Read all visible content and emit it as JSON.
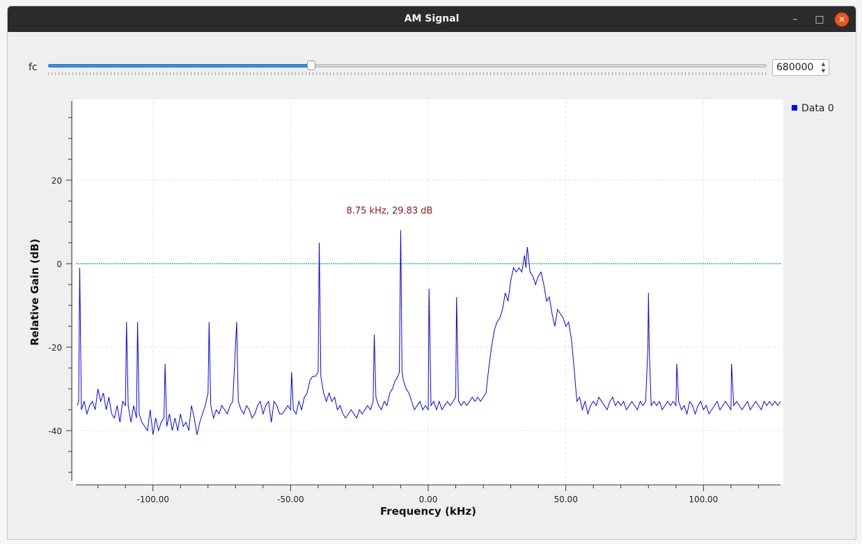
{
  "window": {
    "title": "AM Signal",
    "minimize_label": "–",
    "maximize_label": "□",
    "close_label": "✕"
  },
  "controls": {
    "fc_label": "fc",
    "fc_value": "680000",
    "slider_fraction": 0.366
  },
  "chart_data": {
    "type": "line",
    "xlabel": "Frequency (kHz)",
    "ylabel": "Relative Gain (dB)",
    "xlim": [
      -128,
      128
    ],
    "ylim": [
      -52,
      39
    ],
    "x_ticks": [
      {
        "value": -100,
        "label": "-100.00"
      },
      {
        "value": -50,
        "label": "-50.00"
      },
      {
        "value": 0,
        "label": "0.00"
      },
      {
        "value": 50,
        "label": "50.00"
      },
      {
        "value": 100,
        "label": "100.00"
      }
    ],
    "y_ticks": [
      {
        "value": 20,
        "label": "20"
      },
      {
        "value": 0,
        "label": "0"
      },
      {
        "value": -20,
        "label": "-20"
      },
      {
        "value": -40,
        "label": "-40"
      }
    ],
    "grid": true,
    "reference_line": {
      "y": 0,
      "color": "#008080"
    },
    "legend": {
      "position": "right",
      "entries": [
        "Data 0"
      ]
    },
    "annotation": {
      "text": "8.75 kHz, 29.83 dB",
      "color": "#8b1a1a"
    },
    "line_color": "#0000ff",
    "series": [
      {
        "name": "Data 0",
        "points": [
          [
            -127.5,
            -34
          ],
          [
            -127,
            -33
          ],
          [
            -126.6,
            -1
          ],
          [
            -126,
            -35
          ],
          [
            -125,
            -33
          ],
          [
            -124,
            -36
          ],
          [
            -123,
            -34
          ],
          [
            -122,
            -33
          ],
          [
            -121,
            -35
          ],
          [
            -120,
            -30
          ],
          [
            -119,
            -33
          ],
          [
            -118,
            -31
          ],
          [
            -117,
            -35
          ],
          [
            -116,
            -32
          ],
          [
            -115,
            -36
          ],
          [
            -114,
            -37
          ],
          [
            -113,
            -34
          ],
          [
            -112,
            -38
          ],
          [
            -111,
            -33
          ],
          [
            -110,
            -34
          ],
          [
            -109.6,
            -14
          ],
          [
            -109,
            -34
          ],
          [
            -108,
            -38
          ],
          [
            -107,
            -34
          ],
          [
            -106,
            -37
          ],
          [
            -105.6,
            -14
          ],
          [
            -105,
            -36
          ],
          [
            -104,
            -38
          ],
          [
            -103,
            -39
          ],
          [
            -102,
            -40
          ],
          [
            -101,
            -35
          ],
          [
            -100,
            -41
          ],
          [
            -99,
            -37
          ],
          [
            -98,
            -40
          ],
          [
            -97,
            -38
          ],
          [
            -96,
            -37
          ],
          [
            -95.6,
            -24
          ],
          [
            -95,
            -39
          ],
          [
            -94,
            -36
          ],
          [
            -93,
            -40
          ],
          [
            -92,
            -37
          ],
          [
            -91,
            -40
          ],
          [
            -90,
            -36
          ],
          [
            -89,
            -39
          ],
          [
            -88,
            -38
          ],
          [
            -87,
            -40
          ],
          [
            -86,
            -34
          ],
          [
            -85,
            -37
          ],
          [
            -84,
            -41
          ],
          [
            -83,
            -38
          ],
          [
            -82,
            -36
          ],
          [
            -81,
            -34
          ],
          [
            -80,
            -31
          ],
          [
            -79.6,
            -14
          ],
          [
            -79,
            -34
          ],
          [
            -78,
            -37
          ],
          [
            -77,
            -35
          ],
          [
            -76,
            -36
          ],
          [
            -75,
            -34
          ],
          [
            -74,
            -35
          ],
          [
            -73,
            -36
          ],
          [
            -72,
            -34
          ],
          [
            -71,
            -33
          ],
          [
            -69.6,
            -14
          ],
          [
            -69,
            -33
          ],
          [
            -68,
            -35
          ],
          [
            -67,
            -36
          ],
          [
            -66,
            -34
          ],
          [
            -65,
            -35
          ],
          [
            -64,
            -37
          ],
          [
            -63,
            -36
          ],
          [
            -62,
            -34
          ],
          [
            -61,
            -33
          ],
          [
            -60,
            -36
          ],
          [
            -59,
            -34
          ],
          [
            -58,
            -33
          ],
          [
            -57,
            -38
          ],
          [
            -56,
            -33
          ],
          [
            -55,
            -34
          ],
          [
            -54,
            -36
          ],
          [
            -53,
            -36
          ],
          [
            -52,
            -35
          ],
          [
            -51,
            -34
          ],
          [
            -50,
            -35
          ],
          [
            -49.6,
            -26
          ],
          [
            -49,
            -35
          ],
          [
            -48,
            -36
          ],
          [
            -47,
            -33
          ],
          [
            -46,
            -35
          ],
          [
            -45,
            -32
          ],
          [
            -44,
            -31
          ],
          [
            -43,
            -28
          ],
          [
            -42,
            -27
          ],
          [
            -41,
            -27
          ],
          [
            -40,
            -26
          ],
          [
            -39.6,
            5
          ],
          [
            -39,
            -27
          ],
          [
            -38,
            -31
          ],
          [
            -37,
            -33
          ],
          [
            -36,
            -31
          ],
          [
            -35,
            -33
          ],
          [
            -34,
            -32
          ],
          [
            -33,
            -35
          ],
          [
            -32,
            -34
          ],
          [
            -31,
            -36
          ],
          [
            -30,
            -37
          ],
          [
            -29,
            -36
          ],
          [
            -28,
            -35
          ],
          [
            -27,
            -36
          ],
          [
            -26,
            -37
          ],
          [
            -25,
            -35
          ],
          [
            -24,
            -36
          ],
          [
            -23,
            -35
          ],
          [
            -22,
            -34
          ],
          [
            -21,
            -35
          ],
          [
            -20,
            -33
          ],
          [
            -19.6,
            -17
          ],
          [
            -19,
            -32
          ],
          [
            -18,
            -34
          ],
          [
            -17,
            -35
          ],
          [
            -16,
            -33
          ],
          [
            -15,
            -34
          ],
          [
            -14,
            -31
          ],
          [
            -13,
            -30
          ],
          [
            -12,
            -28
          ],
          [
            -11,
            -27
          ],
          [
            -10.5,
            -26
          ],
          [
            -10,
            8
          ],
          [
            -9.5,
            -26
          ],
          [
            -9,
            -28
          ],
          [
            -8,
            -30
          ],
          [
            -7,
            -31
          ],
          [
            -6,
            -33
          ],
          [
            -5,
            -35
          ],
          [
            -4,
            -34
          ],
          [
            -3,
            -33
          ],
          [
            -2,
            -35
          ],
          [
            -1,
            -34
          ],
          [
            0,
            -35
          ],
          [
            0.3,
            -6
          ],
          [
            1,
            -34
          ],
          [
            2,
            -33
          ],
          [
            3,
            -35
          ],
          [
            4,
            -33
          ],
          [
            5,
            -35
          ],
          [
            6,
            -34
          ],
          [
            7,
            -33
          ],
          [
            8,
            -34
          ],
          [
            9,
            -33
          ],
          [
            10,
            -32
          ],
          [
            10.3,
            -8
          ],
          [
            11,
            -33
          ],
          [
            12,
            -34
          ],
          [
            13,
            -33
          ],
          [
            14,
            -34
          ],
          [
            15,
            -33
          ],
          [
            16,
            -32
          ],
          [
            17,
            -33
          ],
          [
            18,
            -32
          ],
          [
            19,
            -33
          ],
          [
            20,
            -32
          ],
          [
            21,
            -31
          ],
          [
            22,
            -25
          ],
          [
            23,
            -20
          ],
          [
            24,
            -16
          ],
          [
            25,
            -14
          ],
          [
            26,
            -13
          ],
          [
            27,
            -11
          ],
          [
            28,
            -7
          ],
          [
            29,
            -9
          ],
          [
            30,
            -4
          ],
          [
            31,
            -1
          ],
          [
            32,
            -2
          ],
          [
            33,
            -1
          ],
          [
            34,
            -2
          ],
          [
            35,
            2
          ],
          [
            35.5,
            -1
          ],
          [
            36,
            4
          ],
          [
            37,
            -2
          ],
          [
            38,
            -3
          ],
          [
            39,
            -5
          ],
          [
            40,
            -3
          ],
          [
            41,
            -2
          ],
          [
            42,
            -5
          ],
          [
            43,
            -9
          ],
          [
            44,
            -8
          ],
          [
            45,
            -12
          ],
          [
            46,
            -15
          ],
          [
            47,
            -11
          ],
          [
            48,
            -12
          ],
          [
            49,
            -13
          ],
          [
            50,
            -15
          ],
          [
            51,
            -14
          ],
          [
            52,
            -18
          ],
          [
            53,
            -25
          ],
          [
            54,
            -33
          ],
          [
            55,
            -32
          ],
          [
            56,
            -35
          ],
          [
            57,
            -33
          ],
          [
            58,
            -36
          ],
          [
            59,
            -34
          ],
          [
            60,
            -33
          ],
          [
            61,
            -34
          ],
          [
            62,
            -32
          ],
          [
            63,
            -33
          ],
          [
            64,
            -34
          ],
          [
            65,
            -35
          ],
          [
            66,
            -33
          ],
          [
            67,
            -32
          ],
          [
            68,
            -34
          ],
          [
            69,
            -33
          ],
          [
            70,
            -34
          ],
          [
            71,
            -33
          ],
          [
            72,
            -35
          ],
          [
            73,
            -34
          ],
          [
            74,
            -33
          ],
          [
            75,
            -34
          ],
          [
            76,
            -35
          ],
          [
            77,
            -33
          ],
          [
            78,
            -34
          ],
          [
            79,
            -33
          ],
          [
            79.8,
            -20
          ],
          [
            80,
            -7
          ],
          [
            80.3,
            -20
          ],
          [
            81,
            -34
          ],
          [
            82,
            -33
          ],
          [
            83,
            -34
          ],
          [
            84,
            -33
          ],
          [
            85,
            -35
          ],
          [
            86,
            -34
          ],
          [
            87,
            -33
          ],
          [
            88,
            -34
          ],
          [
            89,
            -33
          ],
          [
            90,
            -34
          ],
          [
            90.3,
            -24
          ],
          [
            91,
            -33
          ],
          [
            92,
            -35
          ],
          [
            93,
            -34
          ],
          [
            94,
            -36
          ],
          [
            95,
            -33
          ],
          [
            96,
            -34
          ],
          [
            97,
            -36
          ],
          [
            98,
            -34
          ],
          [
            99,
            -33
          ],
          [
            100,
            -35
          ],
          [
            101,
            -34
          ],
          [
            102,
            -36
          ],
          [
            103,
            -35
          ],
          [
            104,
            -34
          ],
          [
            105,
            -33
          ],
          [
            106,
            -35
          ],
          [
            107,
            -34
          ],
          [
            108,
            -33
          ],
          [
            109,
            -34
          ],
          [
            110,
            -35
          ],
          [
            110.2,
            -24
          ],
          [
            111,
            -34
          ],
          [
            112,
            -33
          ],
          [
            113,
            -34
          ],
          [
            114,
            -35
          ],
          [
            115,
            -34
          ],
          [
            116,
            -33
          ],
          [
            117,
            -35
          ],
          [
            118,
            -34
          ],
          [
            119,
            -33
          ],
          [
            120,
            -34
          ],
          [
            121,
            -35
          ],
          [
            122,
            -33
          ],
          [
            123,
            -34
          ],
          [
            124,
            -33
          ],
          [
            125,
            -34
          ],
          [
            126,
            -33
          ],
          [
            127,
            -34
          ],
          [
            128,
            -33
          ]
        ]
      }
    ]
  }
}
